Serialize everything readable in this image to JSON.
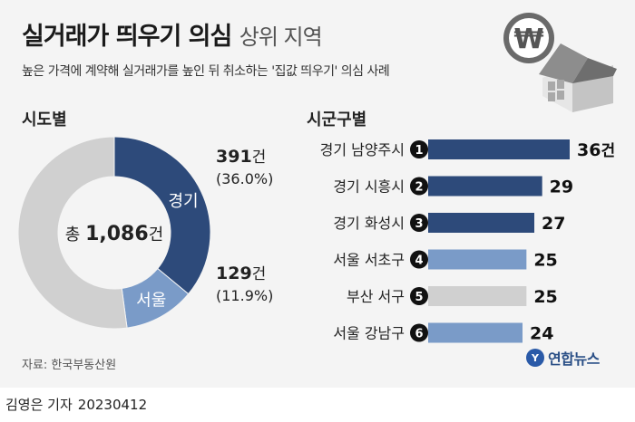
{
  "header": {
    "title_bold": "실거래가 띄우기 의심",
    "title_light": "상위 지역",
    "subtitle": "높은 가격에 계약해 실거래가를 높인 뒤 취소하는 '집값 띄우기' 의심 사례"
  },
  "icon": {
    "currency_symbol": "₩"
  },
  "colors": {
    "dark_blue": "#2d4a7a",
    "light_blue": "#7a9bc8",
    "gray": "#d0d0d0"
  },
  "chart_data": [
    {
      "type": "pie",
      "title": "시도별",
      "center_label_prefix": "총",
      "center_label_value": "1,086",
      "center_label_suffix": "건",
      "total": 1086,
      "slices": [
        {
          "name": "경기",
          "value": 391,
          "value_label": "391건",
          "percent_label": "(36.0%)",
          "color": "#2d4a7a"
        },
        {
          "name": "서울",
          "value": 129,
          "value_label": "129건",
          "percent_label": "(11.9%)",
          "color": "#7a9bc8"
        },
        {
          "name": "",
          "value": 566,
          "color": "#d0d0d0"
        }
      ]
    },
    {
      "type": "bar",
      "title": "시군구별",
      "categories": [
        "경기 남양주시",
        "경기 시흥시",
        "경기 화성시",
        "서울 서초구",
        "부산 서구",
        "서울 강남구"
      ],
      "ranks": [
        "1",
        "2",
        "3",
        "4",
        "5",
        "6"
      ],
      "values": [
        36,
        29,
        27,
        25,
        25,
        24
      ],
      "value_labels": [
        "36건",
        "29",
        "27",
        "25",
        "25",
        "24"
      ],
      "bar_colors": [
        "#2d4a7a",
        "#2d4a7a",
        "#2d4a7a",
        "#7a9bc8",
        "#d0d0d0",
        "#7a9bc8"
      ]
    }
  ],
  "source": "자료: 한국부동산원",
  "brand": {
    "logo": "Y",
    "name": "연합뉴스"
  },
  "footer": {
    "reporter": "김영은 기자",
    "date": "20230412"
  }
}
